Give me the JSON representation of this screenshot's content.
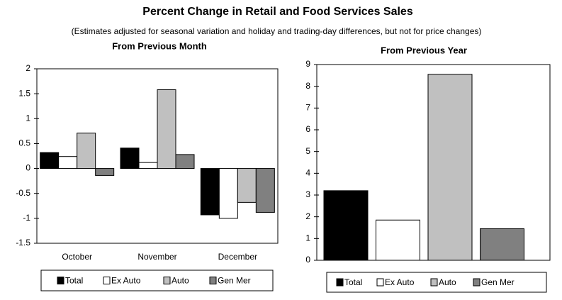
{
  "title": "Percent Change in Retail and Food Services Sales",
  "subtitle": "(Estimates adjusted for seasonal variation and holiday and trading-day differences, but not for price changes)",
  "chart_data": [
    {
      "type": "bar",
      "title": "From Previous Month",
      "categories": [
        "October",
        "November",
        "December"
      ],
      "series": [
        {
          "name": "Total",
          "color": "#000000",
          "values": [
            0.32,
            0.41,
            -0.93
          ]
        },
        {
          "name": "Ex Auto",
          "color": "#ffffff",
          "values": [
            0.24,
            0.12,
            -1.0
          ]
        },
        {
          "name": "Auto",
          "color": "#c0c0c0",
          "values": [
            0.71,
            1.58,
            -0.68
          ]
        },
        {
          "name": "Gen Mer",
          "color": "#808080",
          "values": [
            -0.14,
            0.28,
            -0.88
          ]
        }
      ],
      "ylim": [
        -1.5,
        2
      ],
      "yticks": [
        -1.5,
        -1,
        -0.5,
        0,
        0.5,
        1,
        1.5,
        2
      ],
      "grid": false,
      "legend": "bottom"
    },
    {
      "type": "bar",
      "title": "From Previous Year",
      "series": [
        {
          "name": "Total",
          "color": "#000000",
          "values": [
            3.2
          ]
        },
        {
          "name": "Ex Auto",
          "color": "#ffffff",
          "values": [
            1.85
          ]
        },
        {
          "name": "Auto",
          "color": "#c0c0c0",
          "values": [
            8.55
          ]
        },
        {
          "name": "Gen Mer",
          "color": "#808080",
          "values": [
            1.45
          ]
        }
      ],
      "ylim": [
        0,
        9
      ],
      "yticks": [
        0,
        1,
        2,
        3,
        4,
        5,
        6,
        7,
        8,
        9
      ],
      "grid": false,
      "legend": "bottom"
    }
  ]
}
